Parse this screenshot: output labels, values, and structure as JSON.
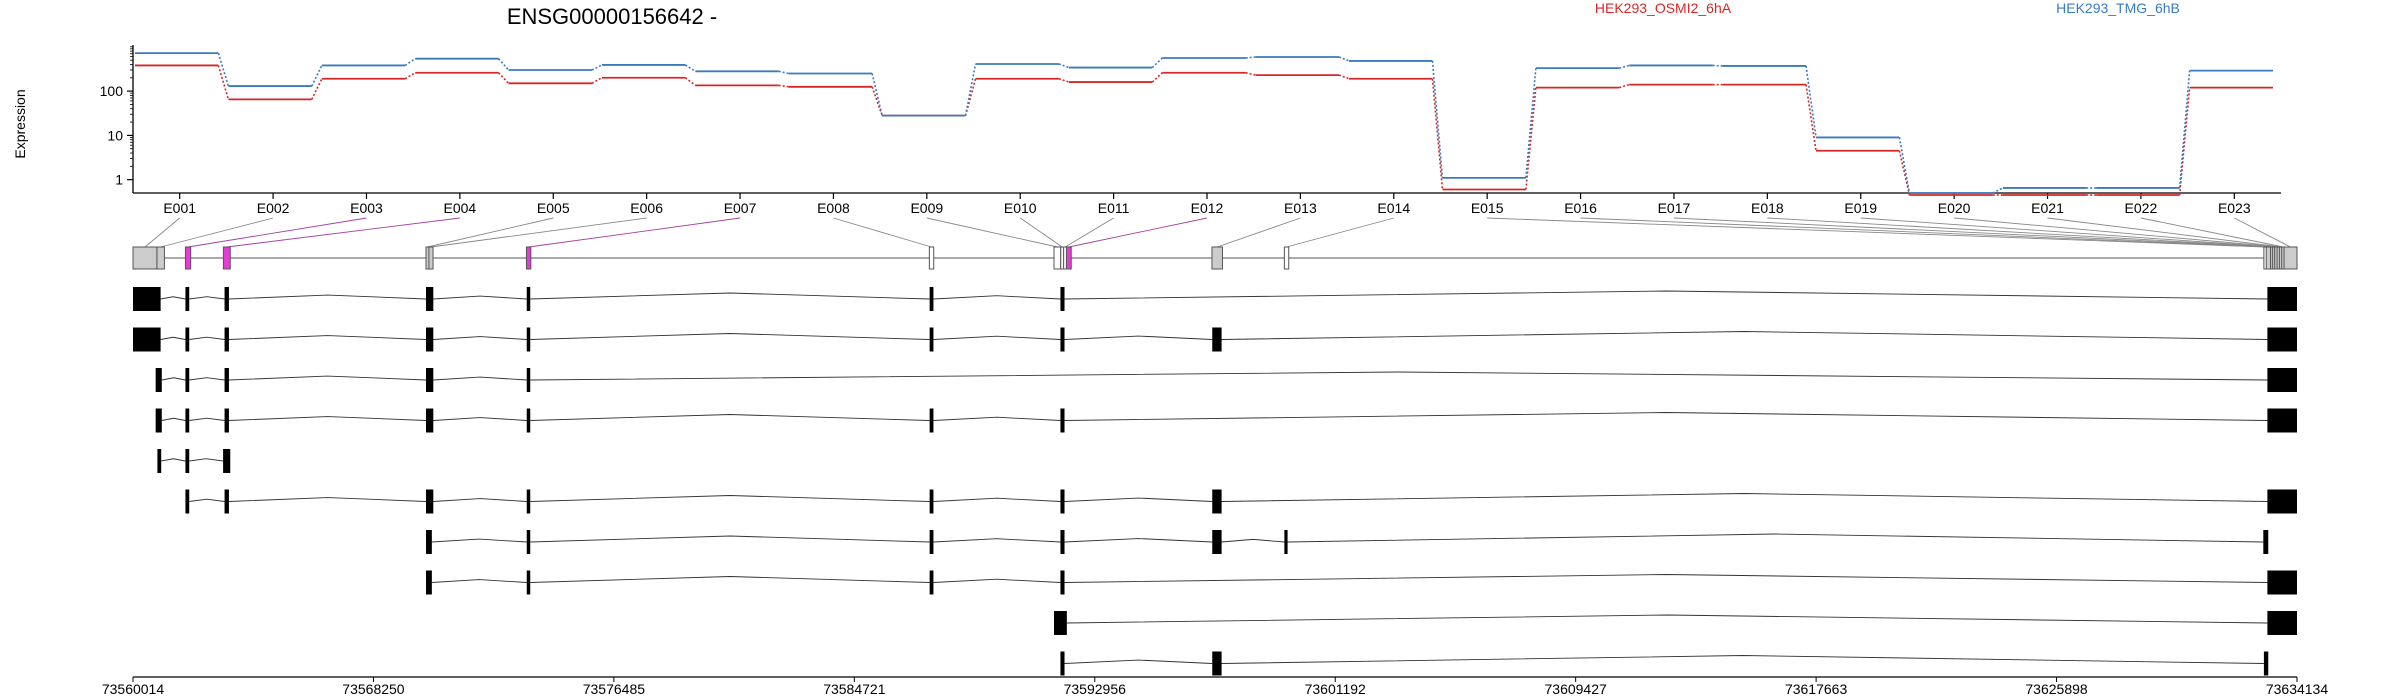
{
  "chart_data": {
    "type": "line",
    "title": "ENSG00000156642 -",
    "ylabel": "Expression",
    "xlabel": "",
    "y_scale": "log10",
    "y_ticks": [
      "1",
      "10",
      "100"
    ],
    "ylim": [
      0.5,
      1100
    ],
    "legend_placement": "top-right",
    "categories": [
      "E001",
      "E002",
      "E003",
      "E004",
      "E005",
      "E006",
      "E007",
      "E008",
      "E009",
      "E010",
      "E011",
      "E012",
      "E013",
      "E014",
      "E015",
      "E016",
      "E017",
      "E018",
      "E019",
      "E020",
      "E021",
      "E022",
      "E023"
    ],
    "series": [
      {
        "name": "HEK293_OSMI2_6hA",
        "color": "#d62728",
        "values": [
          380,
          65,
          190,
          260,
          150,
          200,
          135,
          125,
          28,
          190,
          160,
          260,
          230,
          190,
          0.6,
          120,
          140,
          140,
          4.5,
          0.45,
          0.45,
          0.45,
          120
        ]
      },
      {
        "name": "HEK293_TMG_6hB",
        "color": "#3a7bbf",
        "values": [
          720,
          130,
          380,
          540,
          300,
          390,
          280,
          250,
          28,
          410,
          340,
          560,
          590,
          480,
          1.1,
          330,
          380,
          370,
          9,
          0.5,
          0.65,
          0.65,
          290
        ]
      }
    ],
    "genomic_axis": {
      "labels": [
        "73560014",
        "73568250",
        "73576485",
        "73584721",
        "73592956",
        "73601192",
        "73609427",
        "73617663",
        "73625898",
        "73634134"
      ],
      "start": 73560014,
      "end": 73634134
    },
    "exon_bins": [
      {
        "id": "E001",
        "start": 73560014,
        "end": 73560834,
        "fill": "#cccccc"
      },
      {
        "id": "E002",
        "start": 73560834,
        "end": 73561090,
        "fill": "#cccccc"
      },
      {
        "id": "E003",
        "start": 73561810,
        "end": 73561990,
        "fill": "#e83ad8"
      },
      {
        "id": "E004",
        "start": 73563110,
        "end": 73563345,
        "fill": "#e83ad8"
      },
      {
        "id": "E005",
        "start": 73570050,
        "end": 73570150,
        "fill": "#cccccc"
      },
      {
        "id": "E006",
        "start": 73570150,
        "end": 73570290,
        "fill": "#cccccc"
      },
      {
        "id": "E007",
        "start": 73573490,
        "end": 73573640,
        "fill": "#e83ad8"
      },
      {
        "id": "E008",
        "start": 73587290,
        "end": 73587440,
        "fill": "#ffffff"
      },
      {
        "id": "E009",
        "start": 73591560,
        "end": 73591790,
        "fill": "#ffffff"
      },
      {
        "id": "E010",
        "start": 73591790,
        "end": 73591890,
        "fill": "#ffffff"
      },
      {
        "id": "E011",
        "start": 73591890,
        "end": 73591985,
        "fill": "#ffffff"
      },
      {
        "id": "E012",
        "start": 73591985,
        "end": 73592150,
        "fill": "#e83ad8"
      },
      {
        "id": "E013",
        "start": 73596970,
        "end": 73597330,
        "fill": "#cccccc"
      },
      {
        "id": "E014",
        "start": 73599450,
        "end": 73599600,
        "fill": "#ffffff"
      },
      {
        "id": "E015",
        "start": 73633000,
        "end": 73633080,
        "fill": "#ffffff"
      },
      {
        "id": "E016",
        "start": 73633080,
        "end": 73633230,
        "fill": "#cccccc"
      },
      {
        "id": "E017",
        "start": 73633230,
        "end": 73633300,
        "fill": "#cccccc"
      },
      {
        "id": "E018",
        "start": 73633300,
        "end": 73633370,
        "fill": "#cccccc"
      },
      {
        "id": "E019",
        "start": 73633370,
        "end": 73633450,
        "fill": "#cccccc"
      },
      {
        "id": "E020",
        "start": 73633450,
        "end": 73633530,
        "fill": "#cccccc"
      },
      {
        "id": "E021",
        "start": 73633530,
        "end": 73633610,
        "fill": "#cccccc"
      },
      {
        "id": "E022",
        "start": 73633610,
        "end": 73633690,
        "fill": "#cccccc"
      },
      {
        "id": "E023",
        "start": 73633690,
        "end": 73634134,
        "fill": "#cccccc"
      }
    ],
    "transcripts": [
      {
        "exons": [
          [
            73560014,
            73560960
          ],
          [
            73561810,
            73561940
          ],
          [
            73563150,
            73563300
          ],
          [
            73570050,
            73570300
          ],
          [
            73573500,
            73573620
          ],
          [
            73587300,
            73587430
          ],
          [
            73591780,
            73591920
          ],
          [
            73633120,
            73634134
          ]
        ]
      },
      {
        "exons": [
          [
            73560014,
            73560960
          ],
          [
            73561810,
            73561940
          ],
          [
            73563150,
            73563300
          ],
          [
            73570050,
            73570300
          ],
          [
            73573500,
            73573620
          ],
          [
            73587300,
            73587430
          ],
          [
            73591780,
            73591920
          ],
          [
            73596980,
            73597300
          ],
          [
            73633120,
            73634134
          ]
        ]
      },
      {
        "exons": [
          [
            73560790,
            73561000
          ],
          [
            73561810,
            73561940
          ],
          [
            73563150,
            73563300
          ],
          [
            73570050,
            73570300
          ],
          [
            73573500,
            73573620
          ],
          [
            73633120,
            73634134
          ]
        ]
      },
      {
        "exons": [
          [
            73560790,
            73561000
          ],
          [
            73561810,
            73561940
          ],
          [
            73563150,
            73563300
          ],
          [
            73570050,
            73570300
          ],
          [
            73573500,
            73573620
          ],
          [
            73587300,
            73587430
          ],
          [
            73591780,
            73591920
          ],
          [
            73633120,
            73634134
          ]
        ]
      },
      {
        "exons": [
          [
            73560850,
            73560980
          ],
          [
            73561810,
            73561940
          ],
          [
            73563100,
            73563345
          ]
        ]
      },
      {
        "exons": [
          [
            73561810,
            73561940
          ],
          [
            73563150,
            73563300
          ],
          [
            73570050,
            73570300
          ],
          [
            73573500,
            73573620
          ],
          [
            73587300,
            73587430
          ],
          [
            73591780,
            73591920
          ],
          [
            73596980,
            73597300
          ],
          [
            73633120,
            73634134
          ]
        ]
      },
      {
        "exons": [
          [
            73570050,
            73570250
          ],
          [
            73573500,
            73573620
          ],
          [
            73587300,
            73587430
          ],
          [
            73591780,
            73591920
          ],
          [
            73596980,
            73597300
          ],
          [
            73599450,
            73599560
          ],
          [
            73632980,
            73633150
          ]
        ]
      },
      {
        "exons": [
          [
            73570050,
            73570250
          ],
          [
            73573500,
            73573620
          ],
          [
            73587300,
            73587430
          ],
          [
            73591780,
            73591920
          ],
          [
            73633120,
            73634134
          ]
        ]
      },
      {
        "exons": [
          [
            73591560,
            73592000
          ],
          [
            73633120,
            73634134
          ]
        ]
      },
      {
        "exons": [
          [
            73591780,
            73591920
          ],
          [
            73596980,
            73597300
          ],
          [
            73633000,
            73633150
          ]
        ]
      }
    ]
  }
}
